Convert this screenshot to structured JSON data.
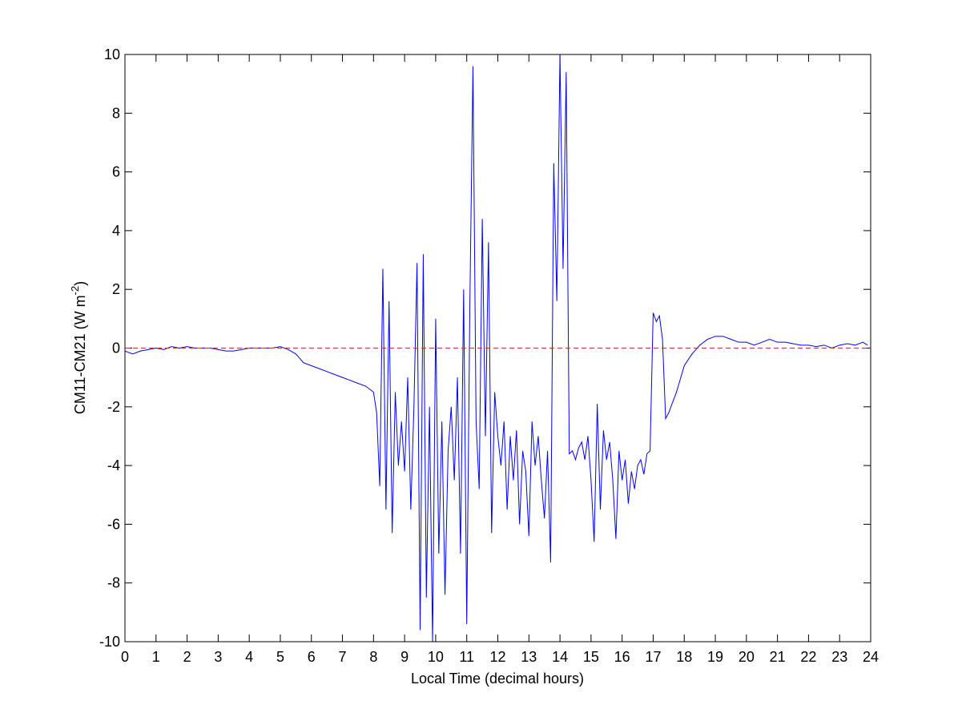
{
  "chart_data": {
    "type": "line",
    "xlabel": "Local Time (decimal hours)",
    "ylabel": {
      "text": "CM11-CM21 (W m",
      "superscript": "-2",
      "suffix": ")"
    },
    "xlim": [
      0,
      24
    ],
    "ylim": [
      -10,
      10
    ],
    "xticks": [
      0,
      1,
      2,
      3,
      4,
      5,
      6,
      7,
      8,
      9,
      10,
      11,
      12,
      13,
      14,
      15,
      16,
      17,
      18,
      19,
      20,
      21,
      22,
      23,
      24
    ],
    "yticks": [
      -10,
      -8,
      -6,
      -4,
      -2,
      0,
      2,
      4,
      6,
      8,
      10
    ],
    "reference_line": {
      "value": 0,
      "color": "#c0393b"
    },
    "x": [
      0,
      0.25,
      0.5,
      0.75,
      1,
      1.25,
      1.5,
      1.75,
      2,
      2.25,
      2.5,
      2.75,
      3,
      3.25,
      3.5,
      3.75,
      4,
      4.25,
      4.5,
      4.75,
      5,
      5.25,
      5.5,
      5.75,
      6,
      6.25,
      6.5,
      6.75,
      7,
      7.25,
      7.5,
      7.75,
      8,
      8.1,
      8.2,
      8.3,
      8.4,
      8.5,
      8.6,
      8.7,
      8.8,
      8.9,
      9.0,
      9.1,
      9.2,
      9.3,
      9.4,
      9.5,
      9.6,
      9.7,
      9.8,
      9.9,
      10.0,
      10.1,
      10.2,
      10.3,
      10.4,
      10.5,
      10.6,
      10.7,
      10.8,
      10.9,
      11.0,
      11.1,
      11.2,
      11.3,
      11.4,
      11.5,
      11.6,
      11.7,
      11.8,
      11.9,
      12.0,
      12.1,
      12.2,
      12.3,
      12.4,
      12.5,
      12.6,
      12.7,
      12.8,
      12.9,
      13.0,
      13.1,
      13.2,
      13.3,
      13.4,
      13.5,
      13.6,
      13.7,
      13.8,
      13.9,
      14.0,
      14.1,
      14.2,
      14.3,
      14.4,
      14.5,
      14.6,
      14.7,
      14.8,
      14.9,
      15.0,
      15.1,
      15.2,
      15.3,
      15.4,
      15.5,
      15.6,
      15.7,
      15.8,
      15.9,
      16.0,
      16.1,
      16.2,
      16.3,
      16.4,
      16.5,
      16.6,
      16.7,
      16.8,
      16.9,
      17.0,
      17.1,
      17.2,
      17.3,
      17.4,
      17.5,
      17.75,
      18,
      18.25,
      18.5,
      18.75,
      19,
      19.25,
      19.5,
      19.75,
      20,
      20.25,
      20.5,
      20.75,
      21,
      21.25,
      21.5,
      21.75,
      22,
      22.25,
      22.5,
      22.75,
      23,
      23.25,
      23.5,
      23.75,
      23.9
    ],
    "series": [
      {
        "color": "#0000ff",
        "values": [
          -0.1,
          -0.2,
          -0.1,
          -0.05,
          0,
          -0.05,
          0.05,
          0,
          0.05,
          0,
          0,
          0,
          -0.05,
          -0.1,
          -0.1,
          -0.05,
          0,
          0,
          0,
          0,
          0.05,
          -0.05,
          -0.2,
          -0.5,
          -0.6,
          -0.7,
          -0.8,
          -0.9,
          -1.0,
          -1.1,
          -1.2,
          -1.3,
          -1.5,
          -2.2,
          -4.7,
          2.7,
          -5.5,
          1.6,
          -6.3,
          -1.5,
          -4.0,
          -2.5,
          -4.2,
          -1.0,
          -5.5,
          -2.0,
          2.9,
          -9.6,
          3.2,
          -8.5,
          -2.0,
          -10,
          1.0,
          -7.0,
          -2.5,
          -8.4,
          -3.5,
          -2.0,
          -4.5,
          -1.0,
          -7.0,
          2.0,
          -9.4,
          1.5,
          9.6,
          -2.5,
          -4.8,
          4.4,
          -3.0,
          3.6,
          -6.3,
          -1.5,
          -3.0,
          -4.0,
          -2.5,
          -5.5,
          -3.0,
          -4.5,
          -2.8,
          -6.0,
          -3.5,
          -4.2,
          -6.4,
          -2.5,
          -4.0,
          -3.0,
          -4.5,
          -5.8,
          -3.5,
          -7.3,
          6.3,
          1.6,
          10,
          2.7,
          9.4,
          -3.6,
          -3.5,
          -3.8,
          -3.4,
          -3.2,
          -3.8,
          -3.0,
          -4.5,
          -6.6,
          -1.9,
          -5.5,
          -2.8,
          -3.8,
          -3.2,
          -4.5,
          -6.5,
          -3.5,
          -4.5,
          -3.8,
          -5.3,
          -4.2,
          -4.8,
          -4.0,
          -3.8,
          -4.3,
          -3.6,
          -3.5,
          1.2,
          0.9,
          1.1,
          0.3,
          -2.4,
          -2.2,
          -1.5,
          -0.6,
          -0.2,
          0.1,
          0.3,
          0.4,
          0.4,
          0.3,
          0.2,
          0.2,
          0.1,
          0.2,
          0.3,
          0.2,
          0.2,
          0.15,
          0.1,
          0.1,
          0.05,
          0.1,
          0,
          0.1,
          0.15,
          0.1,
          0.2,
          0.1
        ]
      }
    ]
  }
}
